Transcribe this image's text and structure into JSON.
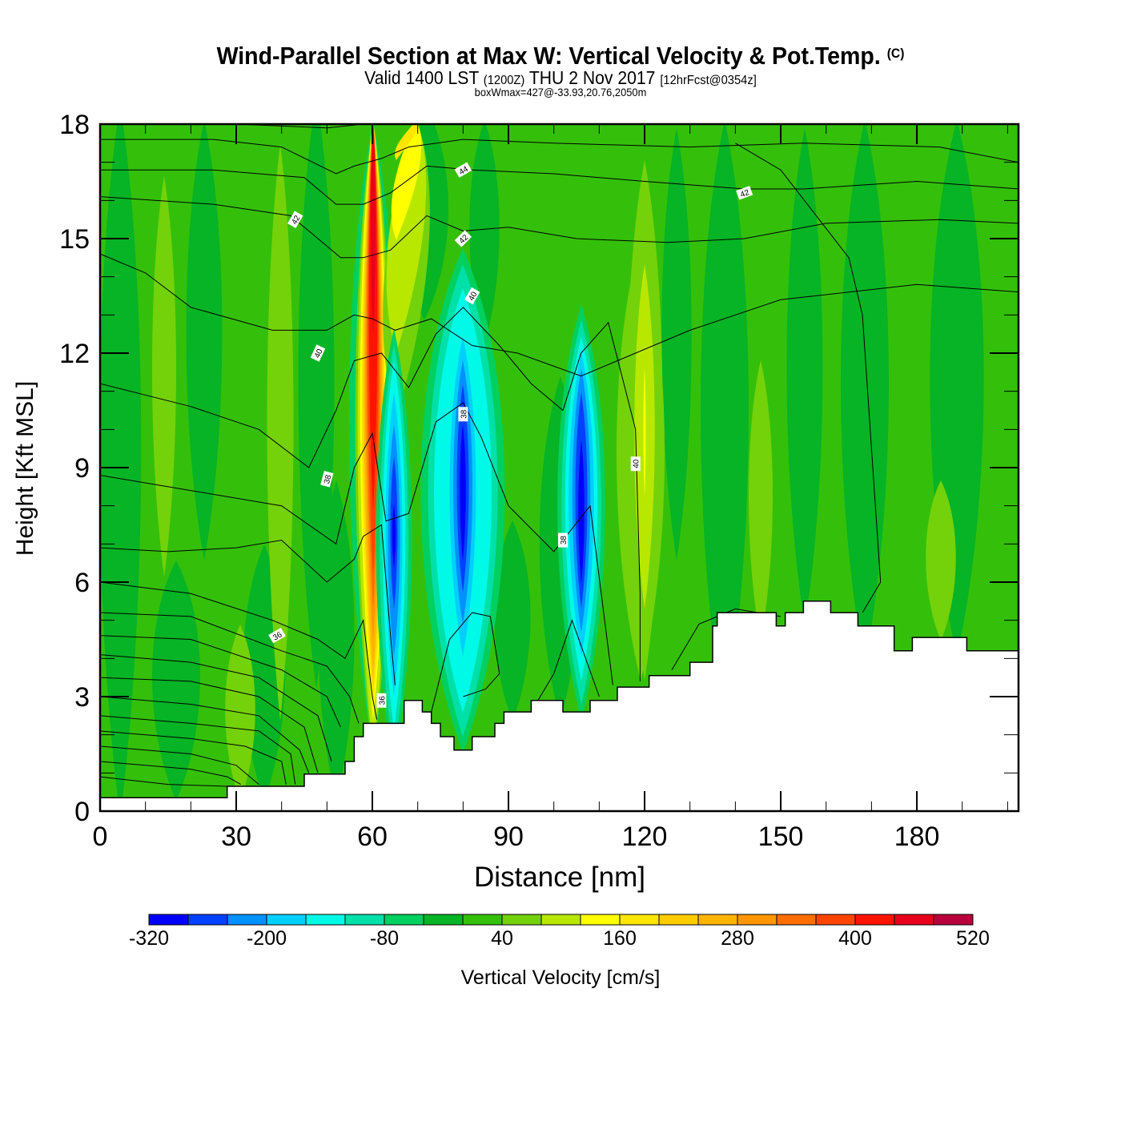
{
  "header": {
    "title": "Wind-Parallel Section at Max W: Vertical Velocity & Pot.Temp.",
    "copyright": "(C)",
    "valid_prefix": "Valid 1400 LST",
    "valid_utc": "(1200Z)",
    "valid_date": "THU 2 Nov 2017",
    "forecast": "[12hrFcst@0354z]",
    "box_info": "boxWmax=427@-33.93,20.76,2050m"
  },
  "chart_data": {
    "type": "heatmap",
    "title": "Wind-Parallel Section at Max W: Vertical Velocity & Pot.Temp.",
    "xlabel": "Distance [nm]",
    "ylabel": "Height [Kft MSL]",
    "xlim": [
      0,
      202.4
    ],
    "ylim": [
      0,
      18
    ],
    "x_ticks": [
      "0",
      "30",
      "60",
      "90",
      "120",
      "150",
      "180"
    ],
    "y_ticks": [
      "0",
      "3",
      "6",
      "9",
      "12",
      "15",
      "18"
    ],
    "colorbar": {
      "label": "Vertical Velocity [cm/s]",
      "levels": [
        -320,
        -280,
        -240,
        -200,
        -160,
        -120,
        -80,
        -40,
        0,
        40,
        80,
        120,
        160,
        200,
        240,
        280,
        320,
        360,
        400,
        440,
        480,
        520
      ],
      "tick_labels": [
        "-320",
        "-200",
        "-80",
        "40",
        "160",
        "280",
        "400",
        "520"
      ],
      "colors": [
        "#0000fa",
        "#0040ff",
        "#0090ff",
        "#00d0ff",
        "#00fae8",
        "#00e0a8",
        "#00d060",
        "#06b425",
        "#34c00a",
        "#74d20a",
        "#b8e800",
        "#ffff00",
        "#ffe600",
        "#ffcc00",
        "#ffb400",
        "#ff9600",
        "#ff6e00",
        "#ff4400",
        "#ff1400",
        "#e8001c",
        "#b8003c"
      ]
    },
    "features": [
      {
        "name": "updraft core",
        "x_nm": 60,
        "w_max": 427
      },
      {
        "name": "downdraft",
        "x_nm": 65,
        "w_min": -320
      },
      {
        "name": "downdraft",
        "x_nm": 81,
        "w_min": -280
      },
      {
        "name": "downdraft",
        "x_nm": 106,
        "w_min": -320
      },
      {
        "name": "weak updraft",
        "x_nm": 120,
        "w_max": 160
      }
    ],
    "contour_labels": [
      "42",
      "44",
      "42",
      "40",
      "40",
      "38",
      "38",
      "38",
      "40",
      "36",
      "36",
      "42"
    ],
    "terrain_kft": [
      {
        "x": 0,
        "h": 0.35
      },
      {
        "x": 28,
        "h": 0.65
      },
      {
        "x": 45,
        "h": 0.97
      },
      {
        "x": 54,
        "h": 1.3
      },
      {
        "x": 56,
        "h": 1.95
      },
      {
        "x": 58,
        "h": 2.3
      },
      {
        "x": 67,
        "h": 2.9
      },
      {
        "x": 71,
        "h": 2.6
      },
      {
        "x": 73,
        "h": 2.3
      },
      {
        "x": 75,
        "h": 1.95
      },
      {
        "x": 78,
        "h": 1.6
      },
      {
        "x": 82,
        "h": 1.95
      },
      {
        "x": 87,
        "h": 2.3
      },
      {
        "x": 89,
        "h": 2.6
      },
      {
        "x": 95,
        "h": 2.9
      },
      {
        "x": 102,
        "h": 2.6
      },
      {
        "x": 108,
        "h": 2.9
      },
      {
        "x": 114,
        "h": 3.25
      },
      {
        "x": 121,
        "h": 3.55
      },
      {
        "x": 130,
        "h": 3.9
      },
      {
        "x": 135,
        "h": 4.85
      },
      {
        "x": 136,
        "h": 5.2
      },
      {
        "x": 149,
        "h": 4.85
      },
      {
        "x": 151,
        "h": 5.2
      },
      {
        "x": 155,
        "h": 5.5
      },
      {
        "x": 161,
        "h": 5.2
      },
      {
        "x": 167,
        "h": 4.85
      },
      {
        "x": 175,
        "h": 4.2
      },
      {
        "x": 179,
        "h": 4.55
      },
      {
        "x": 191,
        "h": 4.2
      },
      {
        "x": 202.4,
        "h": 4.2
      }
    ]
  }
}
